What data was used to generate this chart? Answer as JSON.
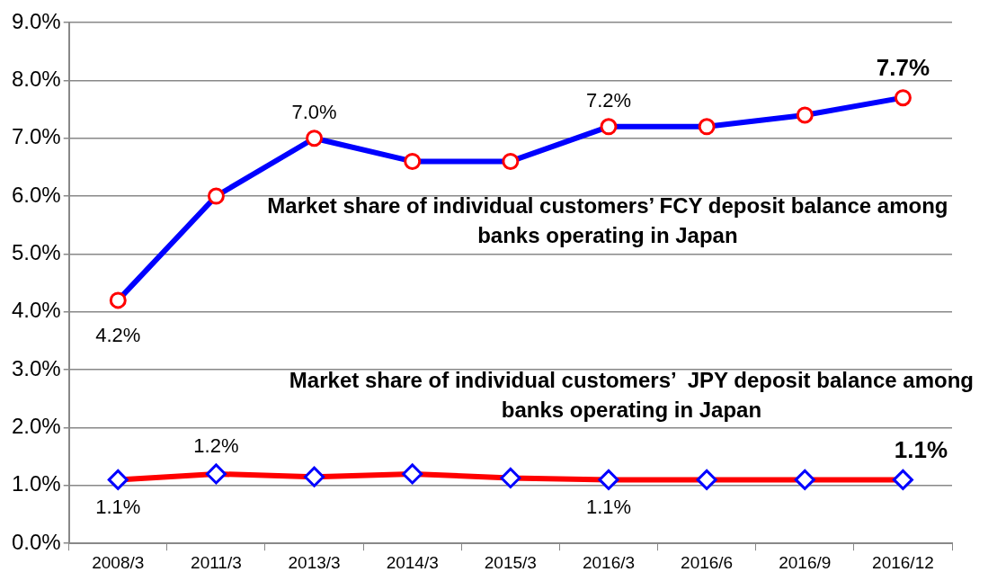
{
  "chart_data": {
    "type": "line",
    "categories": [
      "2008/3",
      "2011/3",
      "2013/3",
      "2014/3",
      "2015/3",
      "2016/3",
      "2016/6",
      "2016/9",
      "2016/12"
    ],
    "series": [
      {
        "name": "Market share of individual customers’ FCY deposit balance among banks operating in Japan",
        "color": "#0000ff",
        "marker": "circle",
        "values": [
          4.2,
          6.0,
          7.0,
          6.6,
          6.6,
          7.2,
          7.2,
          7.4,
          7.7
        ],
        "value_labels": [
          "4.2%",
          null,
          "7.0%",
          null,
          null,
          "7.2%",
          null,
          null,
          "7.7%"
        ]
      },
      {
        "name": "Market share of individual customers’  JPY deposit balance among banks operating in Japan",
        "color": "#ff0000",
        "marker": "diamond",
        "values": [
          1.1,
          1.2,
          1.15,
          1.2,
          1.13,
          1.1,
          1.1,
          1.1,
          1.1
        ],
        "value_labels": [
          "1.1%",
          "1.2%",
          null,
          null,
          null,
          "1.1%",
          null,
          null,
          "1.1%"
        ]
      }
    ],
    "ylim": [
      0,
      9
    ],
    "yticks": [
      {
        "value": 0,
        "label": "0.0%"
      },
      {
        "value": 1,
        "label": "1.0%"
      },
      {
        "value": 2,
        "label": "2.0%"
      },
      {
        "value": 3,
        "label": "3.0%"
      },
      {
        "value": 4,
        "label": "4.0%"
      },
      {
        "value": 5,
        "label": "5.0%"
      },
      {
        "value": 6,
        "label": "6.0%"
      },
      {
        "value": 7,
        "label": "7.0%"
      },
      {
        "value": 8,
        "label": "8.0%"
      },
      {
        "value": 9,
        "label": "9.0%"
      }
    ],
    "grid": "y",
    "legend": false,
    "line_style": "solid"
  }
}
